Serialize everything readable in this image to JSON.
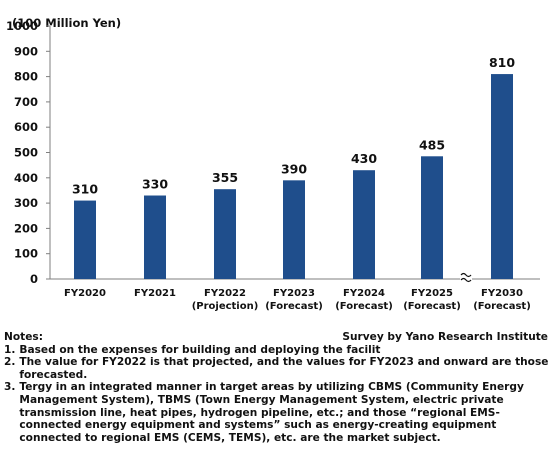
{
  "chart_data": {
    "type": "bar",
    "unit_label": "(100 Million Yen)",
    "categories": [
      [
        "FY2020"
      ],
      [
        "FY2021"
      ],
      [
        "FY2022",
        "(Projection)"
      ],
      [
        "FY2023",
        "(Forecast)"
      ],
      [
        "FY2024",
        "(Forecast)"
      ],
      [
        "FY2025",
        "(Forecast)"
      ],
      [
        "FY2030",
        "(Forecast)"
      ]
    ],
    "values": [
      310,
      330,
      355,
      390,
      430,
      485,
      810
    ],
    "data_labels": [
      "310",
      "330",
      "355",
      "390",
      "430",
      "485",
      "810"
    ],
    "y_ticks": [
      0,
      100,
      200,
      300,
      400,
      500,
      600,
      700,
      800,
      900,
      1000
    ],
    "ylim": [
      0,
      1000
    ],
    "axis_break_between": [
      "FY2025",
      "FY2030"
    ],
    "grid": false,
    "bar_color": "#1f4e8c"
  },
  "notes": {
    "heading": "Notes:",
    "source": "Survey by Yano Research Institute",
    "items": [
      {
        "num": "1.",
        "text": "Based on the expenses for building and deploying the facilit"
      },
      {
        "num": "2.",
        "text": "The value for FY2022 is that projected, and the values for FY2023 and onward are those forecasted."
      },
      {
        "num": "3.",
        "text": "Tergy in an integrated manner in target areas by utilizing CBMS (Community Energy Management System), TBMS (Town Energy Management System, electric private transmission line, heat pipes, hydrogen pipeline, etc.; and those “regional EMS-connected energy equipment and systems” such as energy-creating equipment connected to regional EMS (CEMS, TEMS), etc. are the market subject."
      }
    ]
  }
}
